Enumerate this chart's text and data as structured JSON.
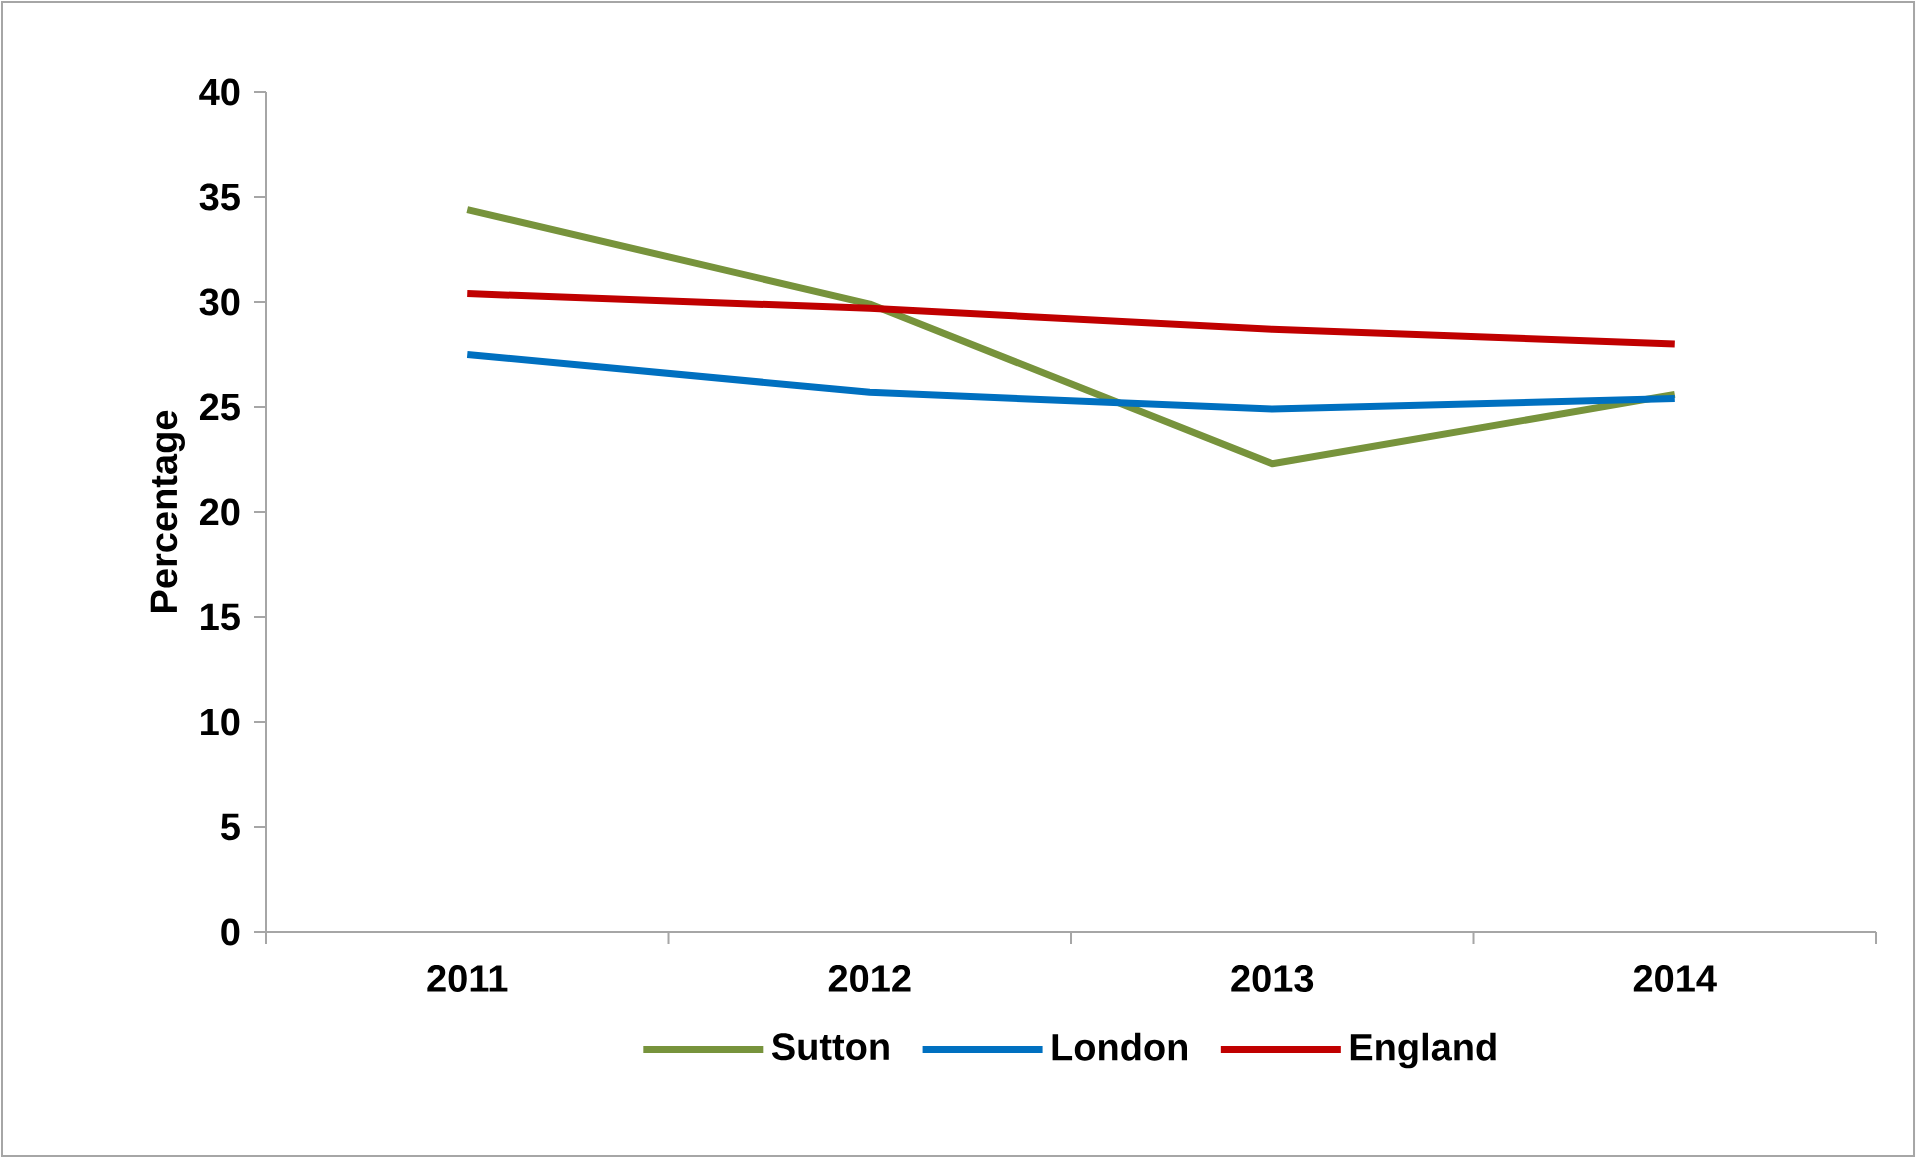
{
  "chart_data": {
    "type": "line",
    "ylabel": "Percentage",
    "categories": [
      "2011",
      "2012",
      "2013",
      "2014"
    ],
    "series": [
      {
        "name": "Sutton",
        "color": "#77933c",
        "values": [
          34.4,
          29.9,
          22.3,
          25.6
        ]
      },
      {
        "name": "London",
        "color": "#0070c0",
        "values": [
          27.5,
          25.7,
          24.9,
          25.4
        ]
      },
      {
        "name": "England",
        "color": "#c00000",
        "values": [
          30.4,
          29.7,
          28.7,
          28.0
        ]
      }
    ],
    "ylim": [
      0,
      40
    ],
    "yticks": [
      0,
      5,
      10,
      15,
      20,
      25,
      30,
      35,
      40
    ],
    "grid": false,
    "legend": "bottom",
    "marker": "none",
    "line_style": "solid"
  }
}
